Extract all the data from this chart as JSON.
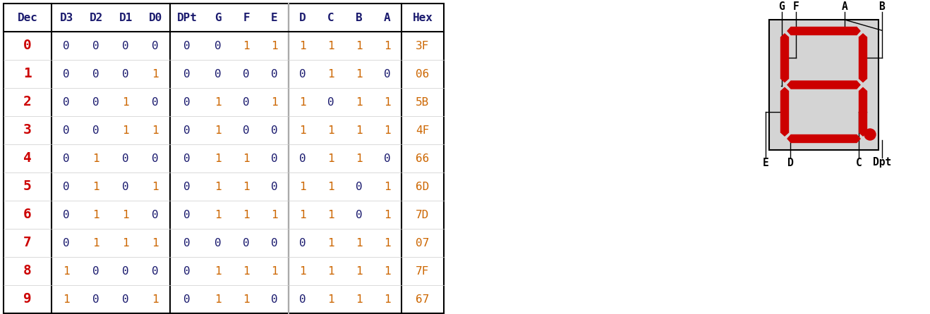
{
  "dec_labels": [
    "0",
    "1",
    "2",
    "3",
    "4",
    "5",
    "6",
    "7",
    "8",
    "9"
  ],
  "dec_color": "#cc0000",
  "header_color": "#1a1a6e",
  "data_color_0": "#1a1a6e",
  "data_color_1": "#cc6600",
  "hex_color": "#cc6600",
  "table_data": [
    [
      0,
      0,
      0,
      0,
      0,
      0,
      1,
      1,
      1,
      1,
      1,
      1,
      "3F"
    ],
    [
      0,
      0,
      0,
      1,
      0,
      0,
      0,
      0,
      0,
      1,
      1,
      0,
      "06"
    ],
    [
      0,
      0,
      1,
      0,
      0,
      1,
      0,
      1,
      1,
      0,
      1,
      1,
      "5B"
    ],
    [
      0,
      0,
      1,
      1,
      0,
      1,
      0,
      0,
      1,
      1,
      1,
      1,
      "4F"
    ],
    [
      0,
      1,
      0,
      0,
      0,
      1,
      1,
      0,
      0,
      1,
      1,
      0,
      "66"
    ],
    [
      0,
      1,
      0,
      1,
      0,
      1,
      1,
      0,
      1,
      1,
      0,
      1,
      "6D"
    ],
    [
      0,
      1,
      1,
      0,
      0,
      1,
      1,
      1,
      1,
      1,
      0,
      1,
      "7D"
    ],
    [
      0,
      1,
      1,
      1,
      0,
      0,
      0,
      0,
      0,
      1,
      1,
      1,
      "07"
    ],
    [
      1,
      0,
      0,
      0,
      0,
      1,
      1,
      1,
      1,
      1,
      1,
      1,
      "7F"
    ],
    [
      1,
      0,
      0,
      1,
      0,
      1,
      1,
      0,
      0,
      1,
      1,
      1,
      "67"
    ]
  ],
  "bg_color": "#ffffff",
  "seg_bg": "#d4d4d4",
  "seg_color": "#cc0000",
  "border_color": "#000000",
  "gray_div_color": "#aaaaaa",
  "font_family": "monospace"
}
